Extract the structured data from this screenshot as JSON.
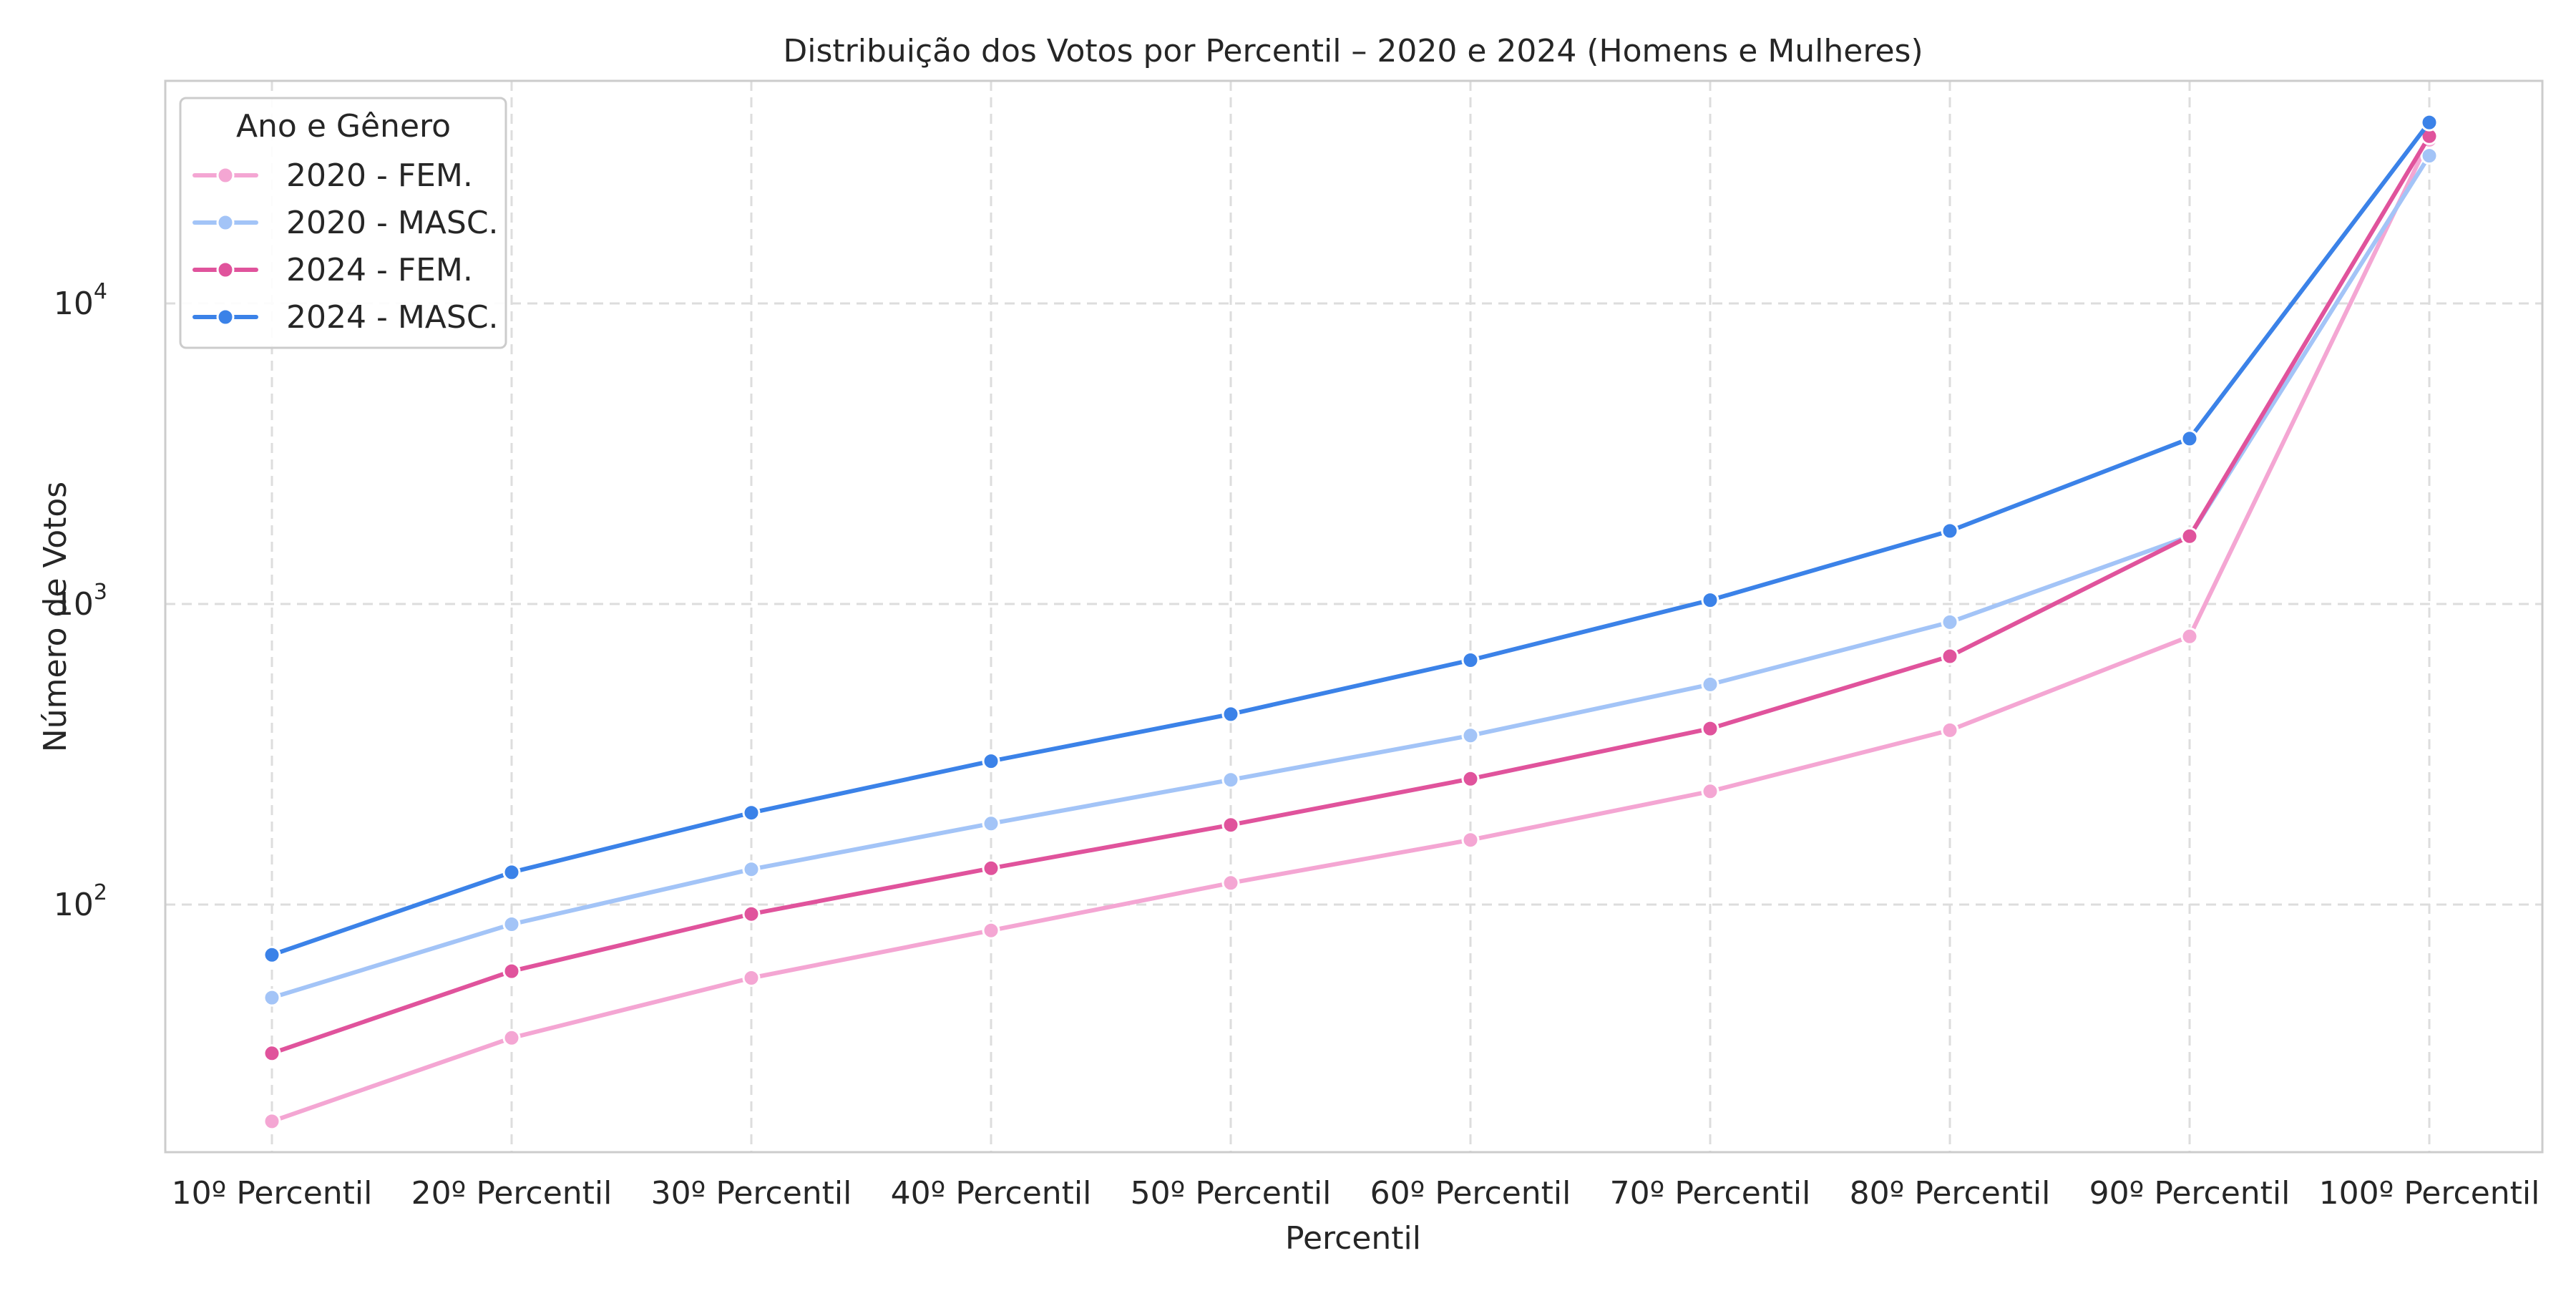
{
  "chart_data": {
    "type": "line",
    "title": "Distribuição dos Votos por Percentil – 2020 e 2024 (Homens e Mulheres)",
    "xlabel": "Percentil",
    "ylabel": "Número de Votos",
    "y_scale": "log",
    "ylim": [
      15,
      55000
    ],
    "y_ticks": [
      {
        "value": 100,
        "base": "10",
        "exp": "2"
      },
      {
        "value": 1000,
        "base": "10",
        "exp": "3"
      },
      {
        "value": 10000,
        "base": "10",
        "exp": "4"
      }
    ],
    "grid": true,
    "legend": {
      "title": "Ano e Gênero",
      "placement": "top-left"
    },
    "categories": [
      "10º Percentil",
      "20º Percentil",
      "30º Percentil",
      "40º Percentil",
      "50º Percentil",
      "60º Percentil",
      "70º Percentil",
      "80º Percentil",
      "90º Percentil",
      "100º Percentil"
    ],
    "series": [
      {
        "name": "2020 - FEM.",
        "color": "#f4a6d3",
        "values": [
          19,
          36,
          57,
          82,
          118,
          164,
          238,
          380,
          780,
          35000
        ]
      },
      {
        "name": "2020 - MASC.",
        "color": "#a3c4f7",
        "values": [
          49,
          86,
          131,
          186,
          260,
          365,
          540,
          870,
          1680,
          31000
        ]
      },
      {
        "name": "2024 - FEM.",
        "color": "#e0539c",
        "values": [
          32,
          60,
          93,
          132,
          184,
          262,
          385,
          670,
          1680,
          36000
        ]
      },
      {
        "name": "2024 - MASC.",
        "color": "#3b82e8",
        "values": [
          68,
          128,
          202,
          300,
          430,
          650,
          1030,
          1750,
          3550,
          40000
        ]
      }
    ]
  }
}
